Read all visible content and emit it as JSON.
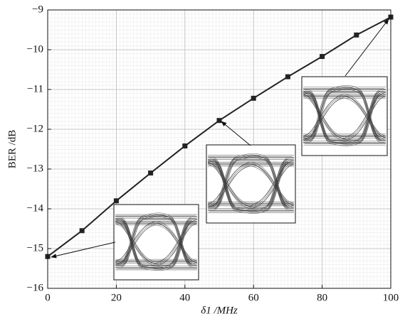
{
  "chart_data": {
    "type": "line",
    "xlabel": "δ1 /MHz",
    "ylabel": "BER /dB",
    "x": [
      0,
      10,
      20,
      30,
      40,
      50,
      60,
      70,
      80,
      90,
      100
    ],
    "series": [
      {
        "color": "#222222",
        "values": [
          -15.2,
          -14.55,
          -13.8,
          -13.1,
          -12.42,
          -11.78,
          -11.22,
          -10.68,
          -10.17,
          -9.63,
          -9.18
        ]
      }
    ],
    "xlim": [
      0,
      100
    ],
    "xticks": [
      0,
      20,
      40,
      60,
      80,
      100
    ],
    "ylim": [
      -16,
      -9
    ],
    "yticks": [
      {
        "value": -16,
        "label": "−16"
      },
      {
        "value": -15,
        "label": "−15"
      },
      {
        "value": -14,
        "label": "−14"
      },
      {
        "value": -13,
        "label": "−13"
      },
      {
        "value": -12,
        "label": "−12"
      },
      {
        "value": -11,
        "label": "−11"
      },
      {
        "value": -10,
        "label": "−10"
      },
      {
        "value": -9,
        "label": "−9"
      }
    ],
    "grid": true
  }
}
